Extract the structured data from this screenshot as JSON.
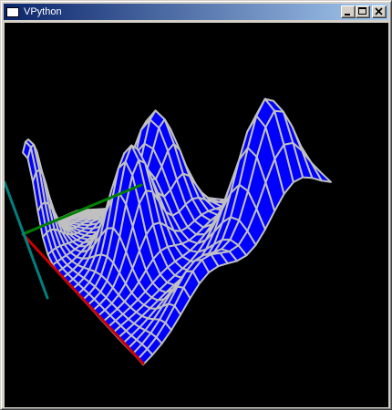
{
  "window": {
    "title": "VPython",
    "buttons": {
      "minimize_icon": "minimize-icon",
      "maximize_icon": "maximize-icon",
      "close_icon": "close-icon"
    }
  },
  "scene": {
    "background": "#000000",
    "surface_color": "#0000ff",
    "grid_color": "#c0c0c0",
    "axis_colors": {
      "x": "#cc0000",
      "y": "#008000",
      "z": "#008080"
    }
  }
}
